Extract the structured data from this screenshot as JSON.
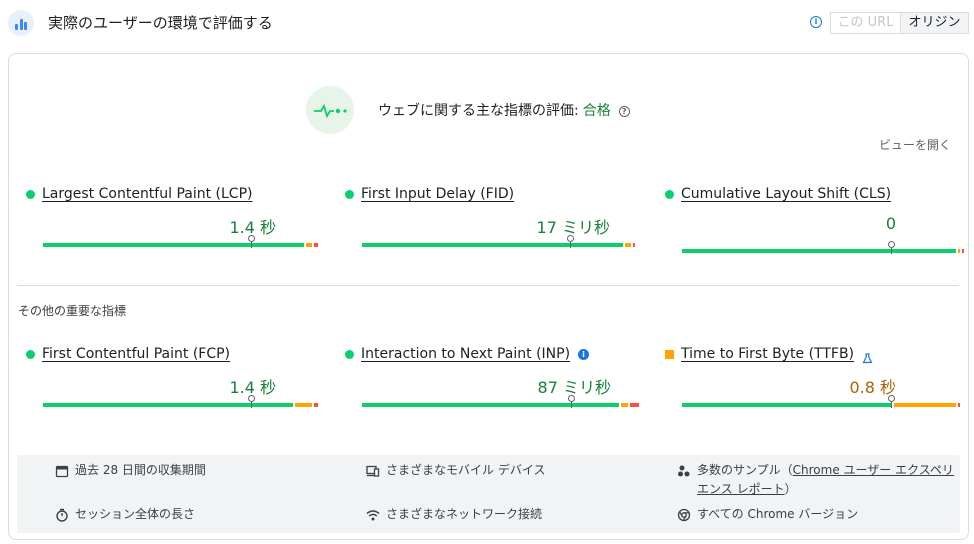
{
  "header": {
    "title": "実際のユーザーの環境で評価する",
    "toggle": {
      "url_label": "この URL",
      "origin_label": "オリジン"
    }
  },
  "assessment": {
    "label": "ウェブに関する主な指標の評価:",
    "result": "合格",
    "expand_label": "ビューを開く"
  },
  "core_metrics": [
    {
      "name": "Largest Contentful Paint (LCP)",
      "value": "1.4 秒",
      "status": "good",
      "distribution_pct": {
        "good": 95,
        "needs_improvement": 3,
        "poor": 2
      },
      "marker_pct": 75
    },
    {
      "name": "First Input Delay (FID)",
      "value": "17 ミリ秒",
      "status": "good",
      "distribution_pct": {
        "good": 95,
        "needs_improvement": 3,
        "poor": 1
      },
      "marker_pct": 75
    },
    {
      "name": "Cumulative Layout Shift (CLS)",
      "value": "0",
      "status": "good",
      "distribution_pct": {
        "good": 99,
        "needs_improvement": 0.5,
        "poor": 0.5
      },
      "marker_pct": 75
    }
  ],
  "other_label": "その他の重要な指標",
  "other_metrics": [
    {
      "name": "First Contentful Paint (FCP)",
      "value": "1.4 秒",
      "status": "good",
      "distribution_pct": {
        "good": 91,
        "needs_improvement": 7,
        "poor": 2
      },
      "marker_pct": 75
    },
    {
      "name": "Interaction to Next Paint (INP)",
      "value": "87 ミリ秒",
      "status": "good",
      "distribution_pct": {
        "good": 93,
        "needs_improvement": 3,
        "poor": 4
      },
      "marker_pct": 75
    },
    {
      "name": "Time to First Byte (TTFB)",
      "value": "0.8 秒",
      "status": "needs_improvement",
      "distribution_pct": {
        "good": 76,
        "needs_improvement": 23,
        "poor": 1
      },
      "marker_pct": 75
    }
  ],
  "footer": {
    "period": "過去 28 日間の収集期間",
    "devices": "さまざまなモバイル デバイス",
    "samples_prefix": "多数のサンプル（",
    "samples_link": "Chrome ユーザー エクスペリエンス レポート",
    "samples_suffix": "）",
    "session": "セッション全体の長さ",
    "network": "さまざまなネットワーク接続",
    "chrome": "すべての Chrome バージョン"
  },
  "colors": {
    "good": "#0cce6b",
    "needs_improvement": "#ffa400",
    "poor": "#ff4e42",
    "good_text": "#188038",
    "ni_text": "#b06000"
  }
}
